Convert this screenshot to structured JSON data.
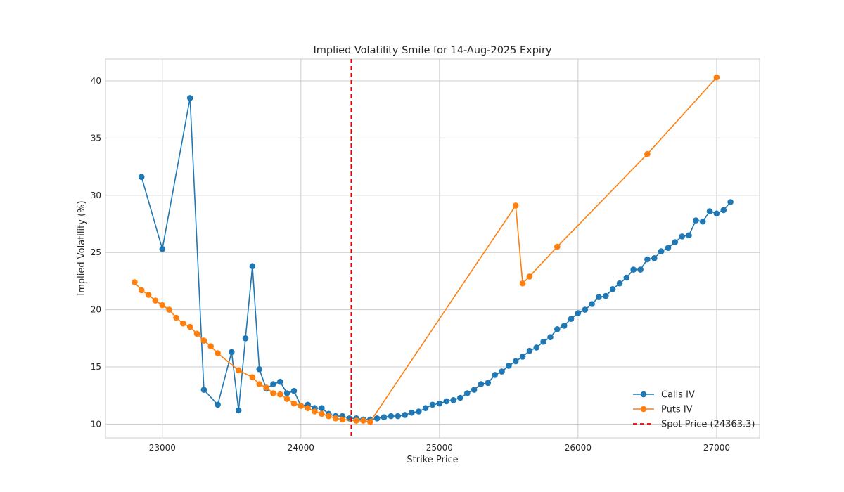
{
  "chart_data": {
    "type": "line",
    "title": "Implied Volatility Smile for 14-Aug-2025 Expiry",
    "xlabel": "Strike Price",
    "ylabel": "Implied Volatility (%)",
    "xlim": [
      22590,
      27310
    ],
    "ylim": [
      8.8,
      41.9
    ],
    "xticks": [
      23000,
      24000,
      25000,
      26000,
      27000
    ],
    "yticks": [
      10,
      15,
      20,
      25,
      30,
      35,
      40
    ],
    "grid": true,
    "legend_position": "lower-right",
    "series": [
      {
        "name": "Calls IV",
        "color": "#1f77b4",
        "marker": "circle",
        "points": [
          [
            22850,
            31.6
          ],
          [
            23000,
            25.3
          ],
          [
            23200,
            38.5
          ],
          [
            23300,
            13.0
          ],
          [
            23400,
            11.7
          ],
          [
            23500,
            16.3
          ],
          [
            23550,
            11.2
          ],
          [
            23600,
            17.5
          ],
          [
            23650,
            23.8
          ],
          [
            23700,
            14.8
          ],
          [
            23750,
            13.1
          ],
          [
            23800,
            13.5
          ],
          [
            23850,
            13.7
          ],
          [
            23900,
            12.7
          ],
          [
            23950,
            12.9
          ],
          [
            24000,
            11.6
          ],
          [
            24050,
            11.7
          ],
          [
            24100,
            11.4
          ],
          [
            24150,
            11.4
          ],
          [
            24200,
            10.9
          ],
          [
            24250,
            10.7
          ],
          [
            24300,
            10.7
          ],
          [
            24350,
            10.5
          ],
          [
            24400,
            10.5
          ],
          [
            24450,
            10.4
          ],
          [
            24500,
            10.4
          ],
          [
            24550,
            10.5
          ],
          [
            24600,
            10.6
          ],
          [
            24650,
            10.7
          ],
          [
            24700,
            10.7
          ],
          [
            24750,
            10.8
          ],
          [
            24800,
            11.0
          ],
          [
            24850,
            11.1
          ],
          [
            24900,
            11.4
          ],
          [
            24950,
            11.7
          ],
          [
            25000,
            11.8
          ],
          [
            25050,
            12.0
          ],
          [
            25100,
            12.1
          ],
          [
            25150,
            12.3
          ],
          [
            25200,
            12.7
          ],
          [
            25250,
            13.0
          ],
          [
            25300,
            13.5
          ],
          [
            25350,
            13.6
          ],
          [
            25400,
            14.3
          ],
          [
            25450,
            14.6
          ],
          [
            25500,
            15.1
          ],
          [
            25550,
            15.5
          ],
          [
            25600,
            15.9
          ],
          [
            25650,
            16.4
          ],
          [
            25700,
            16.7
          ],
          [
            25750,
            17.2
          ],
          [
            25800,
            17.6
          ],
          [
            25850,
            18.3
          ],
          [
            25900,
            18.6
          ],
          [
            25950,
            19.2
          ],
          [
            26000,
            19.7
          ],
          [
            26050,
            20.0
          ],
          [
            26100,
            20.5
          ],
          [
            26150,
            21.1
          ],
          [
            26200,
            21.2
          ],
          [
            26250,
            21.8
          ],
          [
            26300,
            22.3
          ],
          [
            26350,
            22.8
          ],
          [
            26400,
            23.5
          ],
          [
            26450,
            23.5
          ],
          [
            26500,
            24.4
          ],
          [
            26550,
            24.5
          ],
          [
            26600,
            25.1
          ],
          [
            26650,
            25.4
          ],
          [
            26700,
            25.9
          ],
          [
            26750,
            26.4
          ],
          [
            26800,
            26.5
          ],
          [
            26850,
            27.8
          ],
          [
            26900,
            27.7
          ],
          [
            26950,
            28.6
          ],
          [
            27000,
            28.4
          ],
          [
            27050,
            28.7
          ],
          [
            27100,
            29.4
          ]
        ]
      },
      {
        "name": "Puts IV",
        "color": "#ff7f0e",
        "marker": "circle",
        "points": [
          [
            22800,
            22.4
          ],
          [
            22850,
            21.7
          ],
          [
            22900,
            21.3
          ],
          [
            22950,
            20.8
          ],
          [
            23000,
            20.4
          ],
          [
            23050,
            20.0
          ],
          [
            23100,
            19.3
          ],
          [
            23150,
            18.8
          ],
          [
            23200,
            18.5
          ],
          [
            23250,
            17.9
          ],
          [
            23300,
            17.3
          ],
          [
            23350,
            16.8
          ],
          [
            23400,
            16.2
          ],
          [
            23550,
            14.7
          ],
          [
            23650,
            14.1
          ],
          [
            23700,
            13.5
          ],
          [
            23750,
            13.2
          ],
          [
            23800,
            12.7
          ],
          [
            23850,
            12.6
          ],
          [
            23900,
            12.2
          ],
          [
            23950,
            11.8
          ],
          [
            24000,
            11.6
          ],
          [
            24050,
            11.4
          ],
          [
            24100,
            11.1
          ],
          [
            24150,
            10.9
          ],
          [
            24200,
            10.7
          ],
          [
            24250,
            10.5
          ],
          [
            24300,
            10.4
          ],
          [
            24400,
            10.3
          ],
          [
            24450,
            10.3
          ],
          [
            24500,
            10.2
          ],
          [
            25550,
            29.1
          ],
          [
            25600,
            22.3
          ],
          [
            25650,
            22.9
          ],
          [
            25850,
            25.5
          ],
          [
            26500,
            33.6
          ],
          [
            27000,
            40.3
          ]
        ]
      }
    ],
    "reference_lines": [
      {
        "name": "Spot Price (24363.3)",
        "orientation": "vertical",
        "x": 24363.3,
        "color": "#e60000",
        "style": "dashed"
      }
    ]
  }
}
